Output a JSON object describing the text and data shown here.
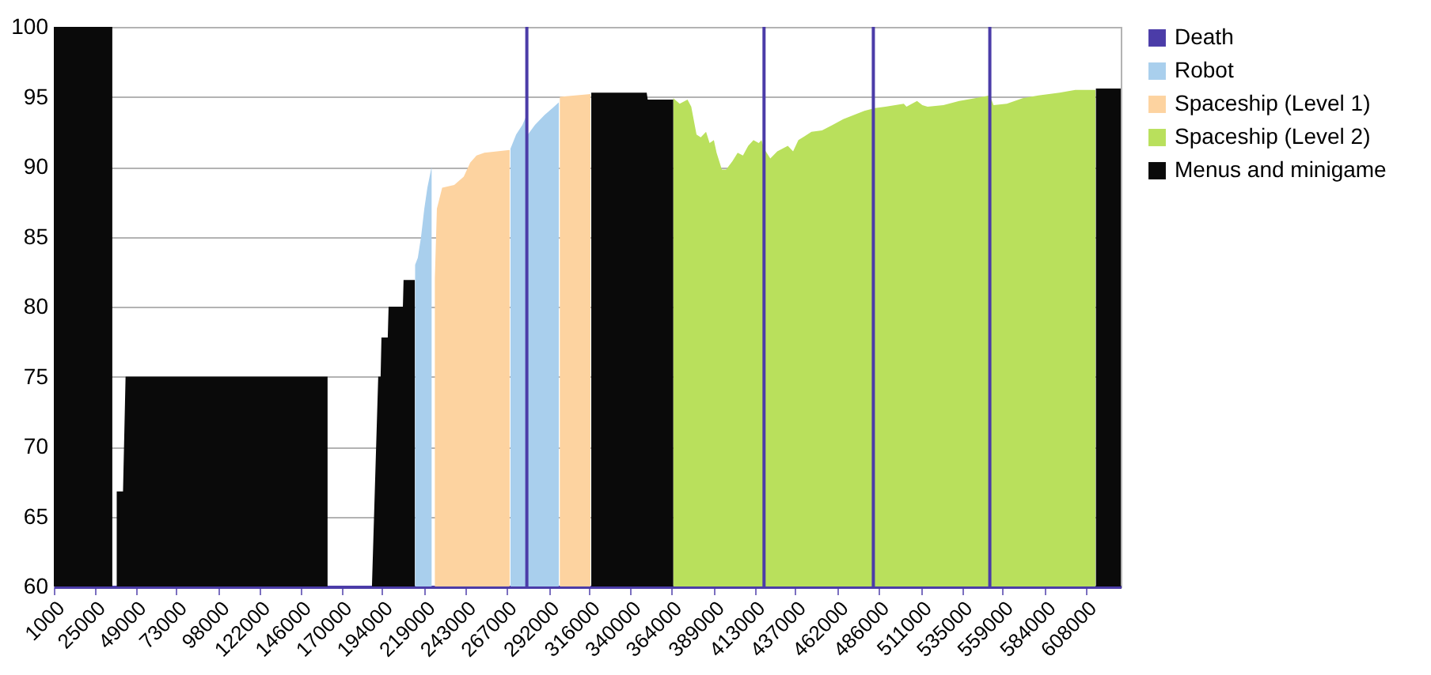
{
  "chart_data": {
    "type": "area",
    "xlim": [
      1000,
      628500
    ],
    "xticks": [
      1000,
      25000,
      49000,
      73000,
      98000,
      122000,
      146000,
      170000,
      194000,
      219000,
      243000,
      267000,
      292000,
      316000,
      340000,
      364000,
      389000,
      413000,
      437000,
      462000,
      486000,
      511000,
      535000,
      559000,
      584000,
      608000
    ],
    "ylim": [
      60,
      100
    ],
    "yticks": [
      60,
      65,
      70,
      75,
      80,
      85,
      90,
      95,
      100
    ],
    "grid": "y",
    "legend": "right",
    "series": [
      {
        "name": "Death",
        "type": "bar",
        "color": "#4b3ca8",
        "x": [
          279200,
          418700,
          483000,
          551500
        ],
        "values": [
          100,
          100,
          100,
          100
        ]
      },
      {
        "name": "Robot",
        "color": "#a9cfed",
        "x": [
          213500,
          215100,
          217000,
          218900,
          220700,
          223200,
          240000,
          269600,
          272900,
          276600,
          278400,
          279800,
          284000,
          289600,
          294300,
          298000
        ],
        "values": [
          83,
          83.5,
          85,
          87,
          88.5,
          90,
          null,
          91.3,
          92.3,
          93,
          93.5,
          92.3,
          93,
          93.7,
          94.2,
          94.6
        ]
      },
      {
        "name": "Spaceship (Level 1)",
        "color": "#fdd3a0",
        "x": [
          225100,
          226300,
          229400,
          236500,
          242100,
          245900,
          249600,
          254200,
          269100,
          282200,
          298600,
          316600
        ],
        "values": [
          82,
          87,
          88.5,
          88.7,
          89.3,
          90.3,
          90.8,
          91,
          91.2,
          null,
          95,
          95.2
        ]
      },
      {
        "name": "Spaceship (Level 2)",
        "color": "#b9e05c",
        "x": [
          365300,
          369100,
          373700,
          375900,
          379000,
          381500,
          384600,
          386700,
          389200,
          390800,
          393900,
          396400,
          400100,
          403200,
          406300,
          409400,
          412500,
          415600,
          417200,
          418700,
          422400,
          426500,
          429600,
          432700,
          435800,
          438900,
          446600,
          452800,
          459100,
          465300,
          477700,
          483900,
          490100,
          500900,
          502500,
          508700,
          511800,
          514900,
          524200,
          533500,
          542800,
          551500,
          553700,
          561500,
          570800,
          580100,
          592500,
          601800,
          613600
        ],
        "values": [
          94.9,
          94.5,
          94.8,
          94.3,
          92.3,
          92.1,
          92.5,
          91.7,
          91.9,
          91,
          89.8,
          89.8,
          90.4,
          91,
          90.8,
          91.5,
          91.9,
          91.7,
          91.9,
          91.3,
          90.6,
          91.1,
          91.3,
          91.5,
          91.1,
          91.9,
          92.5,
          92.6,
          93,
          93.4,
          94,
          94.2,
          94.3,
          94.5,
          94.3,
          94.7,
          94.4,
          94.3,
          94.4,
          94.7,
          94.9,
          95.1,
          94.4,
          94.5,
          94.9,
          95.1,
          95.3,
          95.5,
          95.5
        ]
      },
      {
        "name": "Menus and minigame",
        "color": "#0a0a0a",
        "x": [
          1000,
          35400,
          36800,
          38000,
          41700,
          43200,
          162000,
          175000,
          188100,
          191800,
          193200,
          193700,
          197400,
          197900,
          206300,
          206700,
          213300,
          260000,
          317100,
          349700,
          350300,
          365300,
          390000,
          613900,
          628500
        ],
        "values": [
          100,
          100,
          null,
          66.8,
          66.8,
          75,
          75,
          null,
          60,
          75,
          75,
          77.8,
          77.8,
          80,
          80,
          81.9,
          81.9,
          null,
          95.3,
          95.3,
          94.8,
          94.8,
          null,
          95.6,
          95.6
        ]
      }
    ]
  }
}
